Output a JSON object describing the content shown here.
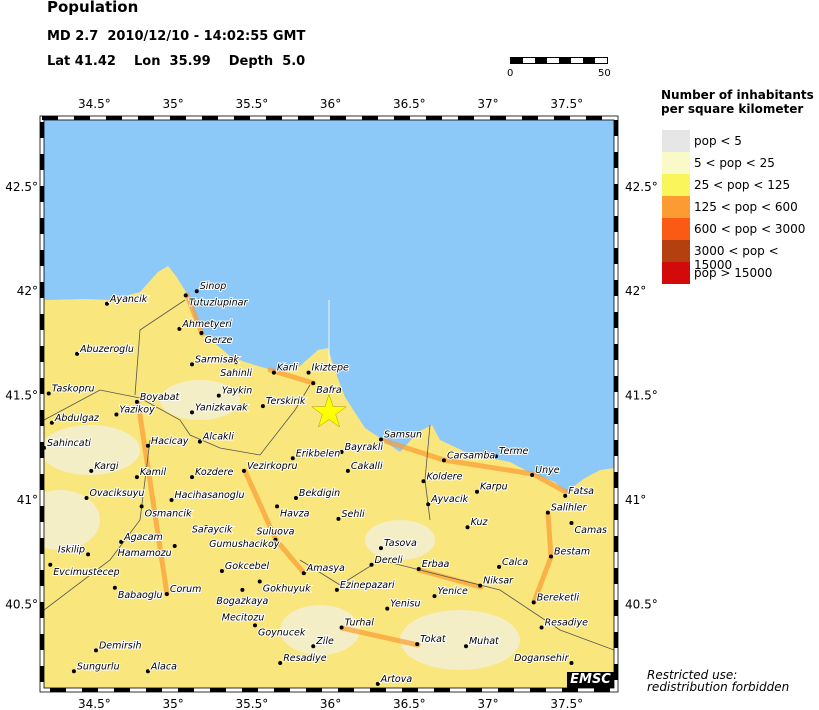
{
  "header": {
    "title": "Population",
    "event": "MD 2.7  2010/12/10 - 14:02:55 GMT",
    "location": "Lat 41.42    Lon  35.99    Depth  5.0"
  },
  "scale": {
    "start": "0",
    "end": "50"
  },
  "legend": {
    "title_line1": "Number of inhabitants",
    "title_line2": "per square kilometer",
    "items": [
      {
        "label": "pop < 5",
        "color": "#e6e6e6"
      },
      {
        "label": "5 < pop < 25",
        "color": "#fafac8"
      },
      {
        "label": "25 < pop < 125",
        "color": "#faf55a"
      },
      {
        "label": "125 < pop < 600",
        "color": "#fb9b32"
      },
      {
        "label": "600 < pop < 3000",
        "color": "#fa5a14"
      },
      {
        "label": "3000 < pop < 15000",
        "color": "#b4400f"
      },
      {
        "label": "pop > 15000",
        "color": "#d20a0a"
      }
    ]
  },
  "map": {
    "lon_range": [
      34.18,
      37.8
    ],
    "lat_range": [
      40.1,
      42.82
    ],
    "sea_color": "#8cc8f8",
    "land_color": "#f9e67c",
    "lon_ticks": [
      "34.5°",
      "35°",
      "35.5°",
      "36°",
      "36.5°",
      "37°",
      "37.5°"
    ],
    "lon_tick_values": [
      34.5,
      35,
      35.5,
      36,
      36.5,
      37,
      37.5
    ],
    "lat_ticks": [
      "42.5°",
      "42°",
      "41.5°",
      "41°",
      "40.5°"
    ],
    "lat_tick_values": [
      42.5,
      42,
      41.5,
      41,
      40.5
    ],
    "epicenter": {
      "lon": 35.99,
      "lat": 41.42,
      "icon": "star-icon",
      "color": "#ffff00"
    },
    "cities": [
      {
        "name": "Sinop",
        "lon": 35.15,
        "lat": 42.0
      },
      {
        "name": "Tutuzlupinar",
        "lon": 35.08,
        "lat": 41.98
      },
      {
        "name": "Ayancik",
        "lon": 34.58,
        "lat": 41.94
      },
      {
        "name": "Ahmetyeri",
        "lon": 35.04,
        "lat": 41.82
      },
      {
        "name": "Gerze",
        "lon": 35.18,
        "lat": 41.8
      },
      {
        "name": "Abuzeroglu",
        "lon": 34.39,
        "lat": 41.7
      },
      {
        "name": "Sarmisak",
        "lon": 35.12,
        "lat": 41.65
      },
      {
        "name": "Sahinli",
        "lon": 35.4,
        "lat": 41.66
      },
      {
        "name": "Karli",
        "lon": 35.64,
        "lat": 41.61
      },
      {
        "name": "Ikiztepe",
        "lon": 35.86,
        "lat": 41.61
      },
      {
        "name": "Bafra",
        "lon": 35.89,
        "lat": 41.56
      },
      {
        "name": "Taskopru",
        "lon": 34.21,
        "lat": 41.51
      },
      {
        "name": "Boyabat",
        "lon": 34.77,
        "lat": 41.47
      },
      {
        "name": "Yaykin",
        "lon": 35.29,
        "lat": 41.5
      },
      {
        "name": "Terskirik",
        "lon": 35.57,
        "lat": 41.45
      },
      {
        "name": "Yazikoy",
        "lon": 34.64,
        "lat": 41.41
      },
      {
        "name": "Yanizkavak",
        "lon": 35.12,
        "lat": 41.42
      },
      {
        "name": "Abdulgaz",
        "lon": 34.23,
        "lat": 41.37
      },
      {
        "name": "Sahincati",
        "lon": 34.18,
        "lat": 41.25
      },
      {
        "name": "Hacicay",
        "lon": 34.84,
        "lat": 41.26
      },
      {
        "name": "Alcakli",
        "lon": 35.17,
        "lat": 41.28
      },
      {
        "name": "Erikbelen",
        "lon": 35.76,
        "lat": 41.2
      },
      {
        "name": "Bayrakli",
        "lon": 36.07,
        "lat": 41.23
      },
      {
        "name": "Kargi",
        "lon": 34.48,
        "lat": 41.14
      },
      {
        "name": "Kamil",
        "lon": 34.77,
        "lat": 41.11
      },
      {
        "name": "Kozdere",
        "lon": 35.12,
        "lat": 41.11
      },
      {
        "name": "Vezirkopru",
        "lon": 35.45,
        "lat": 41.14
      },
      {
        "name": "Samsun",
        "lon": 36.32,
        "lat": 41.29
      },
      {
        "name": "Carsamba",
        "lon": 36.72,
        "lat": 41.19
      },
      {
        "name": "Terme",
        "lon": 37.05,
        "lat": 41.21
      },
      {
        "name": "Cakalli",
        "lon": 36.11,
        "lat": 41.14
      },
      {
        "name": "Koldere",
        "lon": 36.59,
        "lat": 41.09
      },
      {
        "name": "Unye",
        "lon": 37.28,
        "lat": 41.12
      },
      {
        "name": "Karpu",
        "lon": 36.93,
        "lat": 41.04
      },
      {
        "name": "Fatsa",
        "lon": 37.49,
        "lat": 41.02
      },
      {
        "name": "Ovaciksuyu",
        "lon": 34.45,
        "lat": 41.01
      },
      {
        "name": "Hacihasanoglu",
        "lon": 34.99,
        "lat": 41.0
      },
      {
        "name": "Osmancik",
        "lon": 34.8,
        "lat": 40.97
      },
      {
        "name": "Saraycik",
        "lon": 35.1,
        "lat": 40.94
      },
      {
        "name": "Bekdigin",
        "lon": 35.78,
        "lat": 41.01
      },
      {
        "name": "Havza",
        "lon": 35.66,
        "lat": 40.97
      },
      {
        "name": "Ayvacik",
        "lon": 36.62,
        "lat": 40.98
      },
      {
        "name": "Salihler",
        "lon": 37.38,
        "lat": 40.94
      },
      {
        "name": "Sehli",
        "lon": 36.05,
        "lat": 40.91
      },
      {
        "name": "Camas",
        "lon": 37.53,
        "lat": 40.89
      },
      {
        "name": "Kuz",
        "lon": 36.87,
        "lat": 40.87
      },
      {
        "name": "Gumushacikoy",
        "lon": 35.21,
        "lat": 40.87
      },
      {
        "name": "Suluova",
        "lon": 35.65,
        "lat": 40.81
      },
      {
        "name": "Agacam",
        "lon": 34.67,
        "lat": 40.8
      },
      {
        "name": "Hamamozu",
        "lon": 35.01,
        "lat": 40.78
      },
      {
        "name": "Tasova",
        "lon": 36.32,
        "lat": 40.77
      },
      {
        "name": "Iskilip",
        "lon": 34.46,
        "lat": 40.74
      },
      {
        "name": "Bestam",
        "lon": 37.4,
        "lat": 40.73
      },
      {
        "name": "Evcimustecep",
        "lon": 34.22,
        "lat": 40.69
      },
      {
        "name": "Dereli",
        "lon": 36.26,
        "lat": 40.69
      },
      {
        "name": "Erbaa",
        "lon": 36.56,
        "lat": 40.67
      },
      {
        "name": "Calca",
        "lon": 37.07,
        "lat": 40.68
      },
      {
        "name": "Gokcebel",
        "lon": 35.31,
        "lat": 40.66
      },
      {
        "name": "Amasya",
        "lon": 35.83,
        "lat": 40.65
      },
      {
        "name": "Gokhuyuk",
        "lon": 35.55,
        "lat": 40.61
      },
      {
        "name": "Niksar",
        "lon": 36.95,
        "lat": 40.59
      },
      {
        "name": "Babaoglu",
        "lon": 34.63,
        "lat": 40.58
      },
      {
        "name": "Corum",
        "lon": 34.96,
        "lat": 40.55
      },
      {
        "name": "Bogazkaya",
        "lon": 35.44,
        "lat": 40.57
      },
      {
        "name": "Ezinepazari",
        "lon": 36.04,
        "lat": 40.57
      },
      {
        "name": "Yenice",
        "lon": 36.66,
        "lat": 40.54
      },
      {
        "name": "Mecitozu",
        "lon": 35.29,
        "lat": 40.52
      },
      {
        "name": "Bereketli",
        "lon": 37.29,
        "lat": 40.51
      },
      {
        "name": "Yenisu",
        "lon": 36.36,
        "lat": 40.48
      },
      {
        "name": "Goynucek",
        "lon": 35.52,
        "lat": 40.4
      },
      {
        "name": "Turhal",
        "lon": 36.07,
        "lat": 40.39
      },
      {
        "name": "Resadiye",
        "lon": 37.34,
        "lat": 40.39
      },
      {
        "name": "Zile",
        "lon": 35.89,
        "lat": 40.3
      },
      {
        "name": "Tokat",
        "lon": 36.55,
        "lat": 40.31
      },
      {
        "name": "Muhat",
        "lon": 36.86,
        "lat": 40.3
      },
      {
        "name": "Demirsih",
        "lon": 34.51,
        "lat": 40.28
      },
      {
        "name": "Resadiye",
        "lon": 35.68,
        "lat": 40.22
      },
      {
        "name": "Dogansehir",
        "lon": 37.53,
        "lat": 40.22
      },
      {
        "name": "Sungurlu",
        "lon": 34.37,
        "lat": 40.18
      },
      {
        "name": "Alaca",
        "lon": 34.84,
        "lat": 40.18
      },
      {
        "name": "Artova",
        "lon": 36.3,
        "lat": 40.12
      }
    ]
  },
  "footer": {
    "restricted_line1": "Restricted use:",
    "restricted_line2": "redistribution forbidden",
    "logo": "EMSC"
  }
}
